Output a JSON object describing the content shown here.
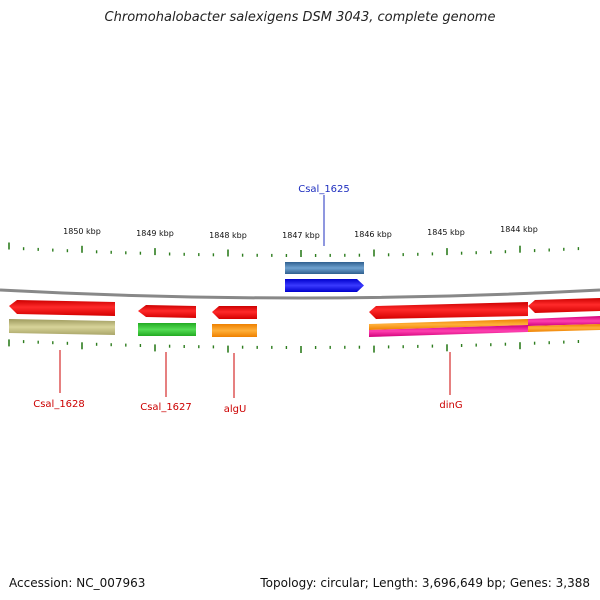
{
  "title": "Chromohalobacter salexigens DSM 3043, complete genome",
  "footer": {
    "accession": "Accession: NC_007963",
    "info": "Topology: circular; Length: 3,696,649 bp; Genes: 3,388"
  },
  "scale_labels": [
    "1850 kbp",
    "1849 kbp",
    "1848 kbp",
    "1847 kbp",
    "1846 kbp",
    "1845 kbp",
    "1844 kbp"
  ],
  "gene_labels": {
    "csal_1625": "Csal_1625",
    "csal_1628": "Csal_1628",
    "csal_1627": "Csal_1627",
    "algU": "algU",
    "dinG": "dinG"
  },
  "colors": {
    "forward_label": "#1f2fbf",
    "reverse_label": "#cc0000",
    "backbone": "#888888",
    "tick": "#2e7d1f"
  }
}
